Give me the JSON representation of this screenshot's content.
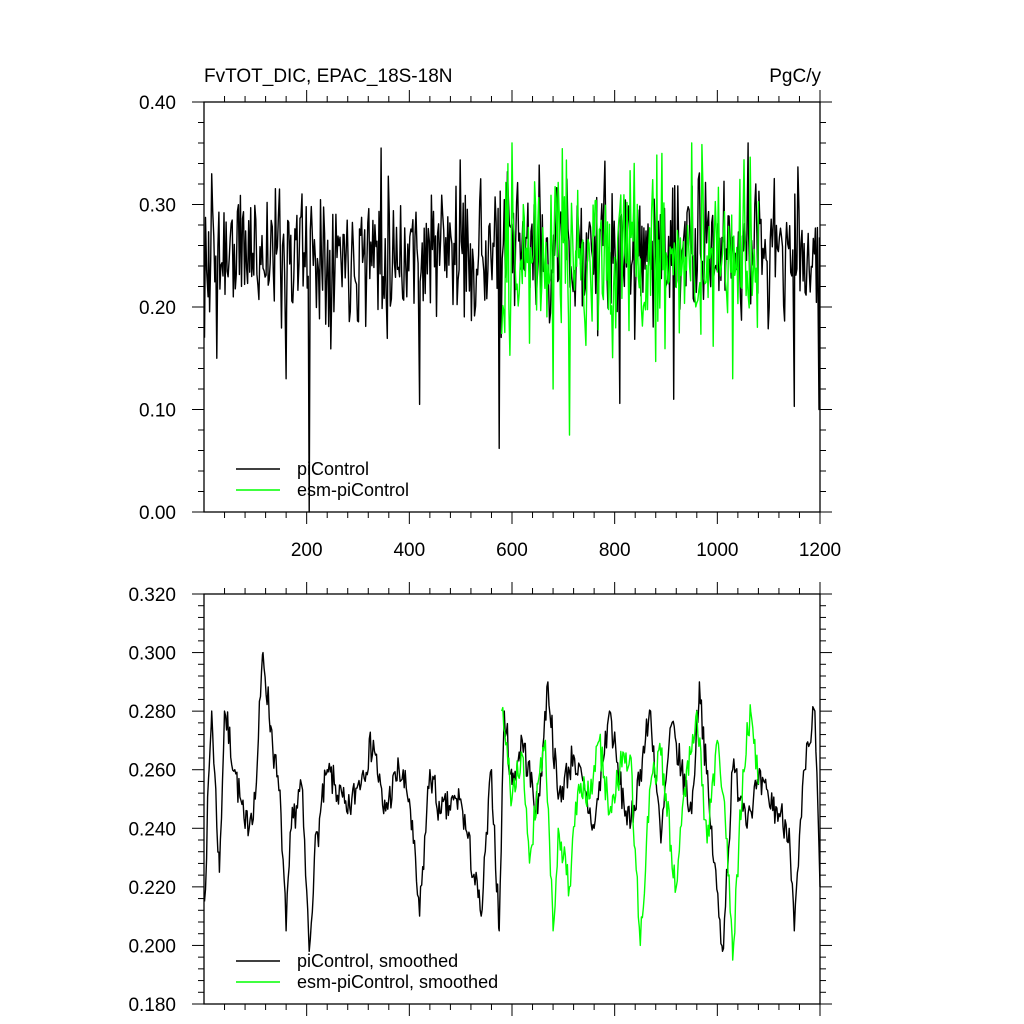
{
  "chart_data": [
    {
      "type": "line",
      "title": "FvTOT_DIC, EPAC_18S-18N",
      "units": "PgC/y",
      "xlabel": "",
      "ylabel": "",
      "xlim": [
        0,
        1200
      ],
      "ylim": [
        0.0,
        0.4
      ],
      "xticks": [
        200,
        400,
        600,
        800,
        1000,
        1200
      ],
      "xtick_labels": [
        "200",
        "400",
        "600",
        "800",
        "1000",
        "1200"
      ],
      "yticks": [
        0.0,
        0.1,
        0.2,
        0.3,
        0.4
      ],
      "ytick_labels": [
        "0.00",
        "0.10",
        "0.20",
        "0.30",
        "0.40"
      ],
      "grid": false,
      "legend_position": "bottom-left",
      "series": [
        {
          "name": "piControl",
          "color": "#000000",
          "x_range": [
            1,
            1200
          ],
          "mean": 0.255,
          "noise_amplitude": 0.045,
          "notable_points": [
            [
              1,
              0.17
            ],
            [
              8,
              0.21
            ],
            [
              15,
              0.33
            ],
            [
              25,
              0.15
            ],
            [
              160,
              0.13
            ],
            [
              205,
              0.0
            ],
            [
              345,
              0.355
            ],
            [
              420,
              0.105
            ],
            [
              575,
              0.062
            ],
            [
              810,
              0.106
            ],
            [
              915,
              0.11
            ],
            [
              1060,
              0.36
            ],
            [
              1150,
              0.103
            ],
            [
              1198,
              0.1
            ]
          ]
        },
        {
          "name": "esm-piControl",
          "color": "#00ff00",
          "x_range": [
            580,
            1080
          ],
          "mean": 0.248,
          "noise_amplitude": 0.06,
          "notable_points": [
            [
              600,
              0.36
            ],
            [
              680,
              0.12
            ],
            [
              712,
              0.075
            ],
            [
              950,
              0.36
            ],
            [
              1030,
              0.13
            ]
          ]
        }
      ]
    },
    {
      "type": "line",
      "title": "",
      "xlabel": "",
      "ylabel": "",
      "xlim": [
        0,
        1200
      ],
      "ylim": [
        0.18,
        0.32
      ],
      "xticks": [
        200,
        400,
        600,
        800,
        1000,
        1200
      ],
      "yticks": [
        0.18,
        0.2,
        0.22,
        0.24,
        0.26,
        0.28,
        0.3,
        0.32
      ],
      "ytick_labels": [
        "0.180",
        "0.200",
        "0.220",
        "0.240",
        "0.260",
        "0.280",
        "0.300",
        "0.320"
      ],
      "grid": false,
      "legend_position": "bottom-left",
      "series": [
        {
          "name": "piControl, smoothed",
          "color": "#000000",
          "x_range": [
            1,
            1200
          ],
          "keypoints": [
            [
              1,
              0.215
            ],
            [
              10,
              0.26
            ],
            [
              15,
              0.28
            ],
            [
              30,
              0.225
            ],
            [
              40,
              0.28
            ],
            [
              60,
              0.26
            ],
            [
              80,
              0.24
            ],
            [
              100,
              0.25
            ],
            [
              110,
              0.285
            ],
            [
              115,
              0.3
            ],
            [
              130,
              0.275
            ],
            [
              150,
              0.245
            ],
            [
              160,
              0.205
            ],
            [
              170,
              0.24
            ],
            [
              190,
              0.255
            ],
            [
              205,
              0.198
            ],
            [
              215,
              0.23
            ],
            [
              240,
              0.26
            ],
            [
              280,
              0.245
            ],
            [
              300,
              0.255
            ],
            [
              330,
              0.27
            ],
            [
              350,
              0.245
            ],
            [
              380,
              0.26
            ],
            [
              400,
              0.25
            ],
            [
              420,
              0.21
            ],
            [
              440,
              0.26
            ],
            [
              460,
              0.245
            ],
            [
              500,
              0.25
            ],
            [
              540,
              0.21
            ],
            [
              560,
              0.26
            ],
            [
              575,
              0.205
            ],
            [
              585,
              0.28
            ],
            [
              600,
              0.255
            ],
            [
              620,
              0.27
            ],
            [
              650,
              0.245
            ],
            [
              670,
              0.29
            ],
            [
              690,
              0.25
            ],
            [
              720,
              0.265
            ],
            [
              760,
              0.24
            ],
            [
              790,
              0.28
            ],
            [
              810,
              0.255
            ],
            [
              830,
              0.24
            ],
            [
              850,
              0.26
            ],
            [
              870,
              0.28
            ],
            [
              890,
              0.235
            ],
            [
              910,
              0.275
            ],
            [
              930,
              0.26
            ],
            [
              950,
              0.245
            ],
            [
              965,
              0.29
            ],
            [
              985,
              0.245
            ],
            [
              1010,
              0.198
            ],
            [
              1030,
              0.26
            ],
            [
              1060,
              0.245
            ],
            [
              1080,
              0.255
            ],
            [
              1100,
              0.25
            ],
            [
              1120,
              0.245
            ],
            [
              1140,
              0.24
            ],
            [
              1150,
              0.205
            ],
            [
              1170,
              0.26
            ],
            [
              1190,
              0.28
            ],
            [
              1200,
              0.22
            ]
          ]
        },
        {
          "name": "esm-piControl, smoothed",
          "color": "#00ff00",
          "x_range": [
            580,
            1080
          ],
          "keypoints": [
            [
              580,
              0.28
            ],
            [
              600,
              0.25
            ],
            [
              620,
              0.265
            ],
            [
              635,
              0.23
            ],
            [
              650,
              0.255
            ],
            [
              665,
              0.27
            ],
            [
              680,
              0.205
            ],
            [
              690,
              0.24
            ],
            [
              712,
              0.22
            ],
            [
              730,
              0.255
            ],
            [
              750,
              0.25
            ],
            [
              770,
              0.27
            ],
            [
              790,
              0.245
            ],
            [
              810,
              0.26
            ],
            [
              830,
              0.265
            ],
            [
              850,
              0.2
            ],
            [
              870,
              0.255
            ],
            [
              890,
              0.265
            ],
            [
              920,
              0.22
            ],
            [
              940,
              0.26
            ],
            [
              960,
              0.28
            ],
            [
              980,
              0.235
            ],
            [
              1000,
              0.27
            ],
            [
              1015,
              0.245
            ],
            [
              1030,
              0.195
            ],
            [
              1050,
              0.26
            ],
            [
              1065,
              0.28
            ],
            [
              1080,
              0.255
            ]
          ]
        }
      ]
    }
  ]
}
